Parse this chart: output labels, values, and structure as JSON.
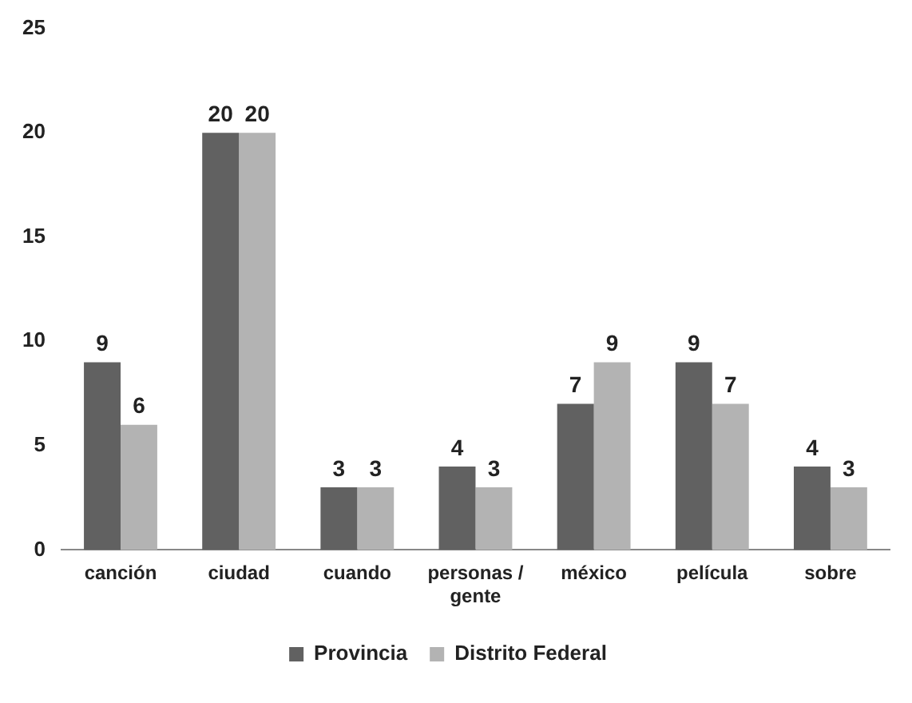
{
  "chart_data": {
    "type": "bar",
    "categories": [
      "canción",
      "ciudad",
      "cuando",
      "personas / gente",
      "méxico",
      "película",
      "sobre"
    ],
    "series": [
      {
        "name": "Provincia",
        "color": "#616161",
        "values": [
          9,
          20,
          3,
          4,
          7,
          9,
          4
        ]
      },
      {
        "name": "Distrito Federal",
        "color": "#b3b3b3",
        "values": [
          6,
          20,
          3,
          3,
          9,
          7,
          3
        ]
      }
    ],
    "ylim": [
      0,
      25
    ],
    "yticks": [
      0,
      5,
      10,
      15,
      20,
      25
    ],
    "grid": false,
    "legend": "bottom",
    "data_labels": true
  }
}
